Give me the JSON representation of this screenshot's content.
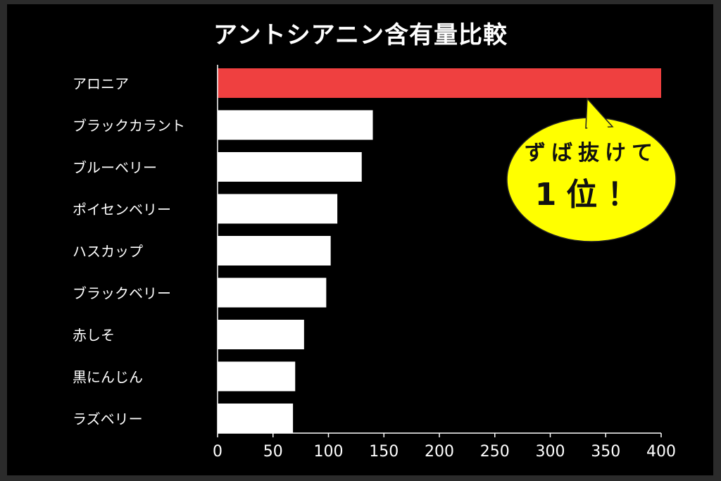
{
  "chart_data": {
    "type": "bar",
    "orientation": "horizontal",
    "title": "アントシアニン含有量比較",
    "categories": [
      "アロニア",
      "ブラックカラント",
      "ブルーベリー",
      "ポイセンベリー",
      "ハスカップ",
      "ブラックベリー",
      "赤しそ",
      "黒にんじん",
      "ラズベリー"
    ],
    "values": [
      400,
      140,
      130,
      108,
      102,
      98,
      78,
      70,
      68
    ],
    "xlim": [
      0,
      400
    ],
    "xticks": [
      "0",
      "50",
      "100",
      "150",
      "200",
      "250",
      "300",
      "350",
      "400"
    ],
    "grid": false,
    "highlight_index": 0,
    "colors": {
      "highlight": "#ef4040",
      "bar": "#ffffff",
      "background": "#000000",
      "axis": "#ffffff",
      "text": "#ffffff"
    }
  },
  "callout": {
    "line1": "ずば抜けて",
    "line2": "1位！",
    "color": "#ffff00"
  }
}
